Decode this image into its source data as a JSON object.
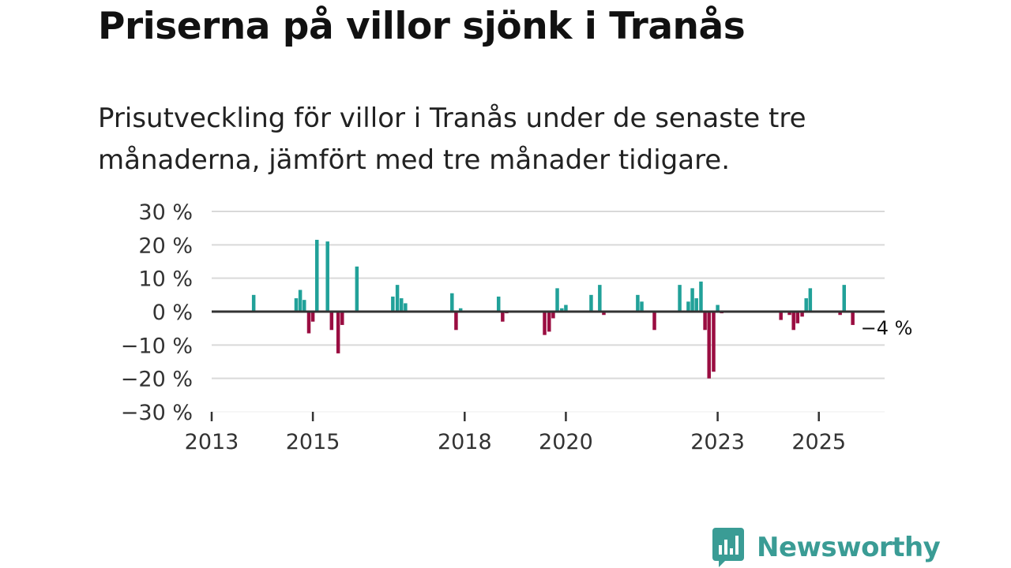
{
  "title": "Priserna på villor sjönk i Tranås",
  "subtitle": "Prisutveckling för villor i Tranås under de senaste tre månaderna, jämfört med tre månader tidigare.",
  "brand": {
    "name": "Newsworthy",
    "icon": "newsworthy-logo-icon"
  },
  "colors": {
    "positive": "#21a199",
    "negative": "#9a0d41",
    "zero_line": "#333333",
    "grid": "#d9d9d9",
    "brand": "#3a9c95"
  },
  "chart_data": {
    "type": "bar",
    "title": "Priserna på villor sjönk i Tranås",
    "xlabel": "",
    "ylabel": "",
    "ylim": [
      -30,
      30
    ],
    "yticks": [
      30,
      20,
      10,
      0,
      -10,
      -20,
      -30
    ],
    "ytick_labels": [
      "30 %",
      "20 %",
      "10 %",
      "0 %",
      "−10 %",
      "−20 %",
      "−30 %"
    ],
    "xlim": [
      2013.0,
      2026.3
    ],
    "xticks": [
      2013,
      2015,
      2018,
      2020,
      2023,
      2025
    ],
    "xtick_labels": [
      "2013",
      "2015",
      "2018",
      "2020",
      "2023",
      "2025"
    ],
    "grid": true,
    "annotation": {
      "text": "−4 %",
      "x": 2025.67,
      "y": -4
    },
    "x": [
      2013.83,
      2014.67,
      2014.75,
      2014.83,
      2014.92,
      2015.0,
      2015.08,
      2015.29,
      2015.37,
      2015.5,
      2015.58,
      2015.87,
      2016.58,
      2016.67,
      2016.75,
      2016.83,
      2017.75,
      2017.83,
      2017.92,
      2018.67,
      2018.75,
      2018.83,
      2019.58,
      2019.67,
      2019.75,
      2019.83,
      2019.92,
      2020.0,
      2020.5,
      2020.67,
      2020.75,
      2021.42,
      2021.5,
      2021.75,
      2022.25,
      2022.42,
      2022.5,
      2022.58,
      2022.67,
      2022.75,
      2022.83,
      2022.92,
      2023.0,
      2023.08,
      2024.25,
      2024.42,
      2024.5,
      2024.58,
      2024.67,
      2024.75,
      2024.83,
      2025.42,
      2025.5,
      2025.67
    ],
    "values": [
      5,
      4,
      6.5,
      3.5,
      -6.5,
      -3,
      21.5,
      21,
      -5.5,
      -12.5,
      -4,
      13.5,
      4.5,
      8,
      4,
      2.5,
      5.5,
      -5.5,
      1,
      4.5,
      -3,
      -0.5,
      -7,
      -6,
      -2,
      7,
      1,
      2,
      5,
      8,
      -1,
      5,
      3,
      -5.5,
      8,
      3,
      7,
      4,
      9,
      -5.5,
      -20,
      -18,
      2,
      -0.5,
      -2.5,
      -1,
      -5.5,
      -3.5,
      -1.5,
      4,
      7,
      -1,
      8,
      -4
    ]
  }
}
